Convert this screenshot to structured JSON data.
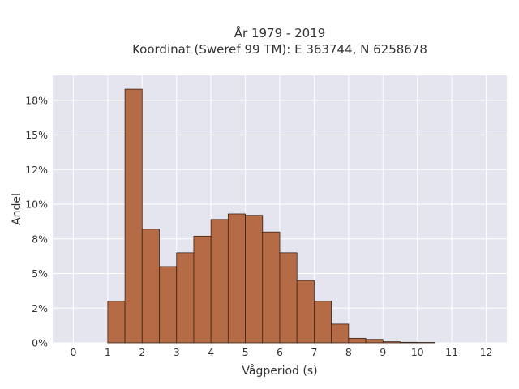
{
  "chart_data": {
    "type": "bar",
    "title_lines": [
      "År 1979 - 2019",
      "Koordinat (Sweref 99 TM): E 363744, N 6258678"
    ],
    "xlabel": "Vågperiod (s)",
    "ylabel": "Andel",
    "xlim": [
      -0.6,
      12.6
    ],
    "ylim": [
      0,
      0.193
    ],
    "x_ticks": [
      0,
      1,
      2,
      3,
      4,
      5,
      6,
      7,
      8,
      9,
      10,
      11,
      12
    ],
    "y_ticks": [
      {
        "value": 0.0,
        "label": "0%"
      },
      {
        "value": 0.025,
        "label": "2%"
      },
      {
        "value": 0.05,
        "label": "5%"
      },
      {
        "value": 0.075,
        "label": "8%"
      },
      {
        "value": 0.1,
        "label": "10%"
      },
      {
        "value": 0.125,
        "label": "12%"
      },
      {
        "value": 0.15,
        "label": "15%"
      },
      {
        "value": 0.175,
        "label": "18%"
      }
    ],
    "bin_width": 0.5,
    "bins": [
      {
        "start": 1.0,
        "value": 0.03
      },
      {
        "start": 1.5,
        "value": 0.183
      },
      {
        "start": 2.0,
        "value": 0.082
      },
      {
        "start": 2.5,
        "value": 0.055
      },
      {
        "start": 3.0,
        "value": 0.065
      },
      {
        "start": 3.5,
        "value": 0.077
      },
      {
        "start": 4.0,
        "value": 0.089
      },
      {
        "start": 4.5,
        "value": 0.093
      },
      {
        "start": 5.0,
        "value": 0.092
      },
      {
        "start": 5.5,
        "value": 0.08
      },
      {
        "start": 6.0,
        "value": 0.065
      },
      {
        "start": 6.5,
        "value": 0.045
      },
      {
        "start": 7.0,
        "value": 0.03
      },
      {
        "start": 7.5,
        "value": 0.0135
      },
      {
        "start": 8.0,
        "value": 0.0033
      },
      {
        "start": 8.5,
        "value": 0.0025
      },
      {
        "start": 9.0,
        "value": 0.0008
      },
      {
        "start": 9.5,
        "value": 0.0004
      },
      {
        "start": 10.0,
        "value": 0.0003
      }
    ],
    "colors": {
      "bar_fill": "#b56b45",
      "bar_stroke": "#3a2417",
      "plot_bg": "#e5e5ef",
      "grid": "#ffffff"
    },
    "grid": true,
    "legend": "none"
  }
}
